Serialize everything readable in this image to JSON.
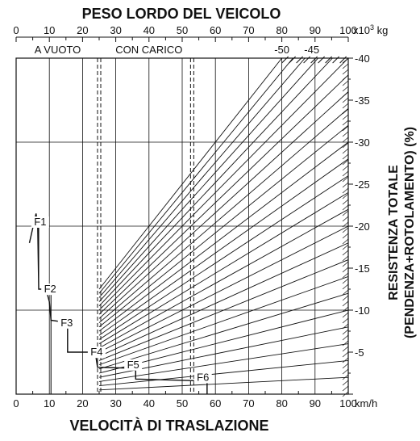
{
  "chart_data": {
    "type": "line",
    "title": "PESO LORDO DEL VEICOLO",
    "xlabel": "VELOCITÀ DI TRASLAZIONE",
    "ylabel_line1": "RESISTENZA TOTALE",
    "ylabel_line2": "(PENDENZA+ROTOLAMENTO) (%)",
    "top_axis": {
      "ticks": [
        "0",
        "10",
        "20",
        "30",
        "40",
        "50",
        "60",
        "70",
        "80",
        "90",
        "100"
      ],
      "unit_base": "x10",
      "unit_exp": "3",
      "unit_suffix": " kg",
      "range": [
        0,
        100
      ]
    },
    "bottom_axis": {
      "ticks": [
        "0",
        "10",
        "20",
        "30",
        "40",
        "50",
        "60",
        "70",
        "80",
        "90",
        "100"
      ],
      "unit": "km/h",
      "range": [
        0,
        100
      ]
    },
    "right_axis": {
      "ticks": [
        "-5",
        "-10",
        "-15",
        "-20",
        "-25",
        "-30",
        "-35",
        "-40"
      ],
      "range": [
        0,
        -40
      ]
    },
    "regions": {
      "empty_label": "A VUOTO",
      "empty_weight": 25,
      "loaded_label": "CON CARICO",
      "loaded_weight": 53
    },
    "top_resistance_labels": [
      "-50",
      "-45"
    ],
    "resistance_lines": [
      -2,
      -4,
      -6,
      -8,
      -10,
      -12,
      -14,
      -16,
      -18,
      -20,
      -22,
      -24,
      -26,
      -28,
      -30,
      -32,
      -34,
      -36,
      -38,
      -40,
      -42,
      -44,
      -46,
      -48,
      -50
    ],
    "gears": [
      {
        "name": "F1",
        "label_at": [
          7,
          -20
        ]
      },
      {
        "name": "F2",
        "label_at": [
          10,
          -12
        ]
      },
      {
        "name": "F3",
        "label_at": [
          15,
          -8
        ]
      },
      {
        "name": "F4",
        "label_at": [
          24,
          -4.5
        ]
      },
      {
        "name": "F5",
        "label_at": [
          35,
          -3
        ]
      },
      {
        "name": "F6",
        "label_at": [
          56,
          -1.5
        ]
      }
    ],
    "rimpull_curve": [
      [
        4,
        -18
      ],
      [
        6,
        -21.5
      ],
      [
        6.5,
        -20
      ],
      [
        6.8,
        -12.5
      ],
      [
        9,
        -12.5
      ],
      [
        10,
        -11
      ],
      [
        10.5,
        -8.8
      ],
      [
        14,
        -8.6
      ],
      [
        15.5,
        -8.3
      ],
      [
        15.5,
        -5
      ],
      [
        23,
        -5
      ],
      [
        24,
        -4.5
      ],
      [
        24.5,
        -3.2
      ],
      [
        34,
        -3.1
      ],
      [
        36,
        -2.8
      ],
      [
        36,
        -1.8
      ],
      [
        54,
        -1.6
      ],
      [
        57.5,
        -1.6
      ],
      [
        57.5,
        0
      ]
    ],
    "gear_verticals": [
      [
        [
          6.8,
          -21
        ],
        [
          6.8,
          -12.5
        ]
      ],
      [
        [
          10.5,
          -13
        ],
        [
          10.5,
          0
        ]
      ],
      [
        [
          15.5,
          -8.3
        ],
        [
          15.5,
          -5
        ]
      ],
      [
        [
          24.5,
          -5
        ],
        [
          24.5,
          -3.2
        ]
      ],
      [
        [
          36,
          -3
        ],
        [
          36,
          -1.8
        ]
      ],
      [
        [
          57.5,
          -1.6
        ],
        [
          57.5,
          0
        ]
      ]
    ],
    "grid": true
  }
}
